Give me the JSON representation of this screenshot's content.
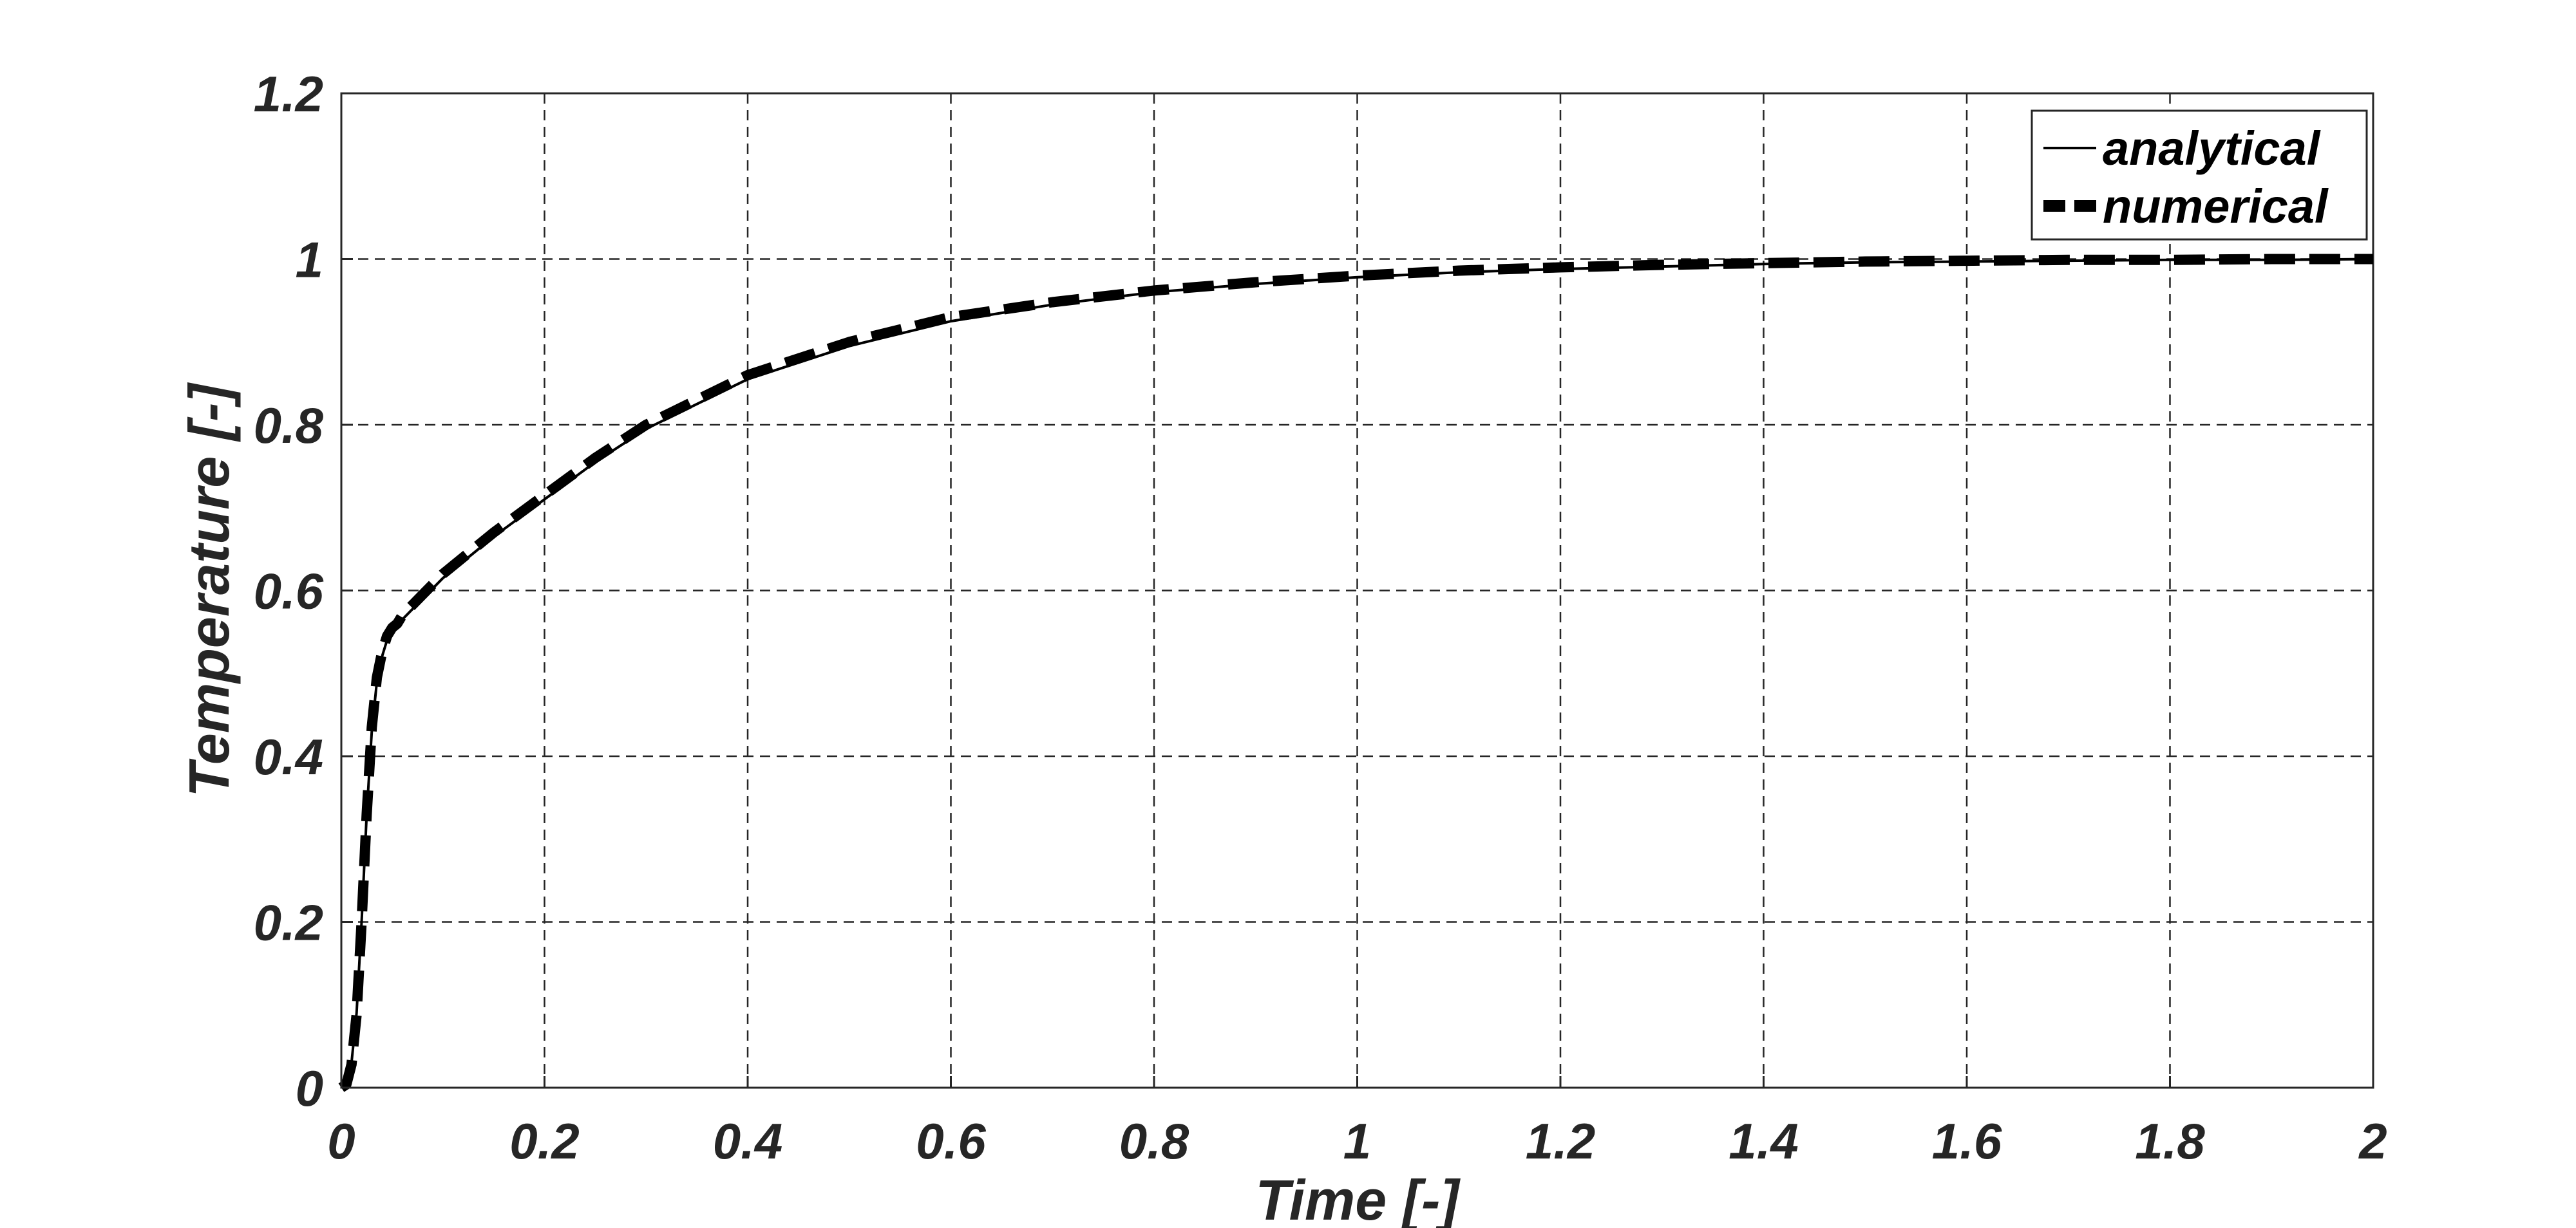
{
  "chart_data": {
    "type": "line",
    "title": "",
    "xlabel": "Time [-]",
    "ylabel": "Temperature [-]",
    "xlim": [
      0,
      2
    ],
    "ylim": [
      0,
      1.2
    ],
    "x_ticks": [
      "0",
      "0.2",
      "0.4",
      "0.6",
      "0.8",
      "1",
      "1.2",
      "1.4",
      "1.6",
      "1.8",
      "2"
    ],
    "y_ticks": [
      "0",
      "0.2",
      "0.4",
      "0.6",
      "0.8",
      "1",
      "1.2"
    ],
    "grid": true,
    "legend_position": "top-right",
    "series": [
      {
        "name": "analytical",
        "style": "solid",
        "color": "#000000",
        "x": [
          0,
          0.005,
          0.01,
          0.015,
          0.02,
          0.025,
          0.03,
          0.035,
          0.04,
          0.045,
          0.05,
          0.055,
          0.06,
          0.08,
          0.1,
          0.15,
          0.2,
          0.25,
          0.3,
          0.35,
          0.4,
          0.5,
          0.6,
          0.7,
          0.8,
          0.9,
          1.0,
          1.1,
          1.2,
          1.3,
          1.4,
          1.5,
          1.6,
          1.7,
          1.8,
          1.9,
          2.0
        ],
        "y": [
          0,
          0.005,
          0.03,
          0.09,
          0.2,
          0.33,
          0.43,
          0.49,
          0.52,
          0.54,
          0.55,
          0.56,
          0.565,
          0.59,
          0.615,
          0.665,
          0.71,
          0.755,
          0.795,
          0.825,
          0.855,
          0.895,
          0.925,
          0.945,
          0.96,
          0.97,
          0.978,
          0.984,
          0.988,
          0.991,
          0.994,
          0.996,
          0.997,
          0.998,
          0.999,
          0.999,
          1.0
        ]
      },
      {
        "name": "numerical",
        "style": "dashed",
        "color": "#000000",
        "x": [
          0,
          0.005,
          0.01,
          0.015,
          0.02,
          0.025,
          0.03,
          0.035,
          0.04,
          0.045,
          0.05,
          0.055,
          0.06,
          0.08,
          0.1,
          0.15,
          0.2,
          0.25,
          0.3,
          0.35,
          0.4,
          0.5,
          0.6,
          0.7,
          0.8,
          0.9,
          1.0,
          1.1,
          1.2,
          1.3,
          1.4,
          1.5,
          1.6,
          1.7,
          1.8,
          1.9,
          2.0
        ],
        "y": [
          0,
          0.004,
          0.028,
          0.088,
          0.2,
          0.33,
          0.435,
          0.495,
          0.525,
          0.545,
          0.555,
          0.56,
          0.57,
          0.595,
          0.62,
          0.67,
          0.715,
          0.76,
          0.8,
          0.83,
          0.86,
          0.9,
          0.93,
          0.948,
          0.962,
          0.972,
          0.98,
          0.986,
          0.99,
          0.993,
          0.995,
          0.997,
          0.998,
          0.999,
          0.999,
          1.0,
          1.0
        ]
      }
    ]
  }
}
